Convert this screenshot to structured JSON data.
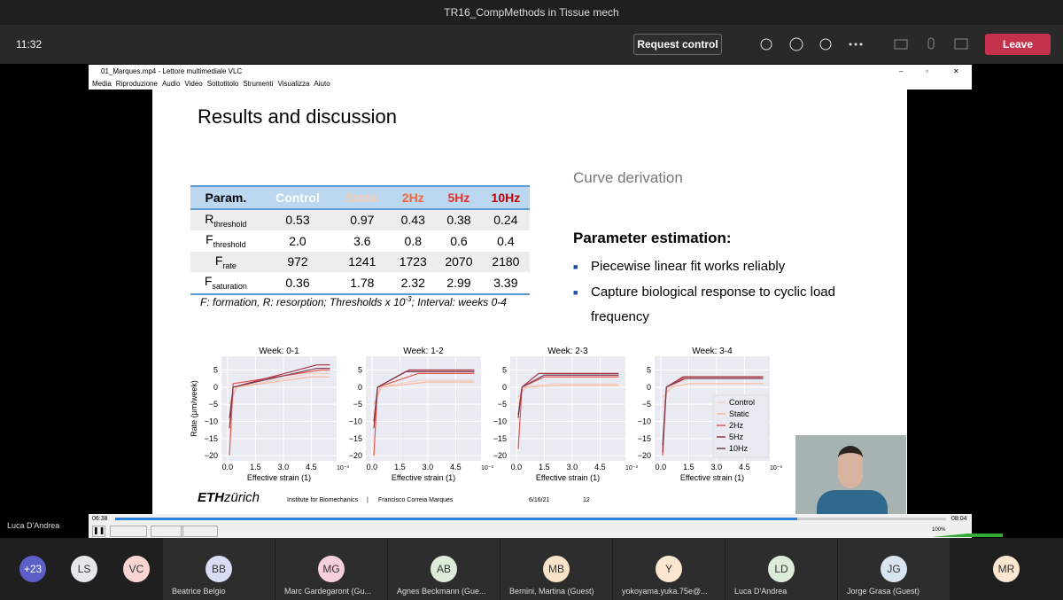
{
  "teams": {
    "meeting_title": "TR16_CompMethods in Tissue mech",
    "time": "11:32",
    "request_control": "Request control",
    "leave": "Leave",
    "presenter": "Luca D'Andrea"
  },
  "vlc": {
    "window_title": "01_Marques.mp4 - Lettore multimediale VLC",
    "menu": [
      "Media",
      "Riproduzione",
      "Audio",
      "Video",
      "Sottotitolo",
      "Strumenti",
      "Visualizza",
      "Aiuto"
    ],
    "elapsed": "06:38",
    "total": "08:04",
    "volume": "100%"
  },
  "slide": {
    "title": "Results and discussion",
    "table": {
      "header": [
        "Param.",
        "Control",
        "Static",
        "2Hz",
        "5Hz",
        "10Hz"
      ],
      "rows": [
        {
          "label": "R",
          "sub": "threshold",
          "cells": [
            "0.53",
            "0.97",
            "0.43",
            "0.38",
            "0.24"
          ]
        },
        {
          "label": "F",
          "sub": "threshold",
          "cells": [
            "2.0",
            "3.6",
            "0.8",
            "0.6",
            "0.4"
          ]
        },
        {
          "label": "F",
          "sub": "rate",
          "cells": [
            "972",
            "1241",
            "1723",
            "2070",
            "2180"
          ]
        },
        {
          "label": "F",
          "sub": "saturation",
          "cells": [
            "0.36",
            "1.78",
            "2.32",
            "2.99",
            "3.39"
          ]
        }
      ],
      "caption": [
        "F: formation, R: resorption; Thresholds x 10",
        "-3",
        "; Interval: weeks 0-4"
      ]
    },
    "curve_derivation": "Curve derivation",
    "param_heading": "Parameter estimation:",
    "bullets": [
      "Piecewise linear fit works reliably",
      "Capture biological response to cyclic load frequency"
    ],
    "footer": {
      "logo_bold": "ETH",
      "logo_rest": "zürich",
      "institute": "Institute for Biomechanics",
      "separator": "|",
      "author": "Francisco Correia Marques",
      "date": "6/16/21",
      "page": "12"
    },
    "plots": {
      "ylabel": "Rate (μm/week)",
      "xlabel": "Effective strain (1)",
      "x_exponent": "10⁻³",
      "xlim": [
        -0.33,
        5.86
      ],
      "ylim": [
        -21.5,
        9
      ],
      "xticks": [
        {
          "value": 0,
          "label": "0.0"
        },
        1.5,
        {
          "value": 3,
          "label": "3.0"
        },
        4.5
      ],
      "yticks": [
        5,
        0,
        {
          "value": -5,
          "label": "−5"
        },
        {
          "value": -10,
          "label": "−10"
        },
        {
          "value": -15,
          "label": "−15"
        },
        {
          "value": -20,
          "label": "−20"
        }
      ],
      "series_names": [
        "Control",
        "Static",
        "2Hz",
        "5Hz",
        "10Hz"
      ],
      "colors": [
        "#f2cfc8",
        "#f6b99c",
        "#e8584c",
        "#a3303c",
        "#7b3b52"
      ],
      "panels": [
        {
          "title": "Week: 0-1",
          "series": [
            {
              "x": [
                0.1,
                0.4,
                4.5,
                5.5
              ],
              "values": [
                -9,
                0,
                4,
                4
              ]
            },
            {
              "x": [
                0.1,
                0.5,
                4.5,
                5.5
              ],
              "values": [
                -5,
                0,
                3,
                3
              ]
            },
            {
              "x": [
                0.1,
                0.3,
                5.0,
                5.5
              ],
              "values": [
                -20,
                1,
                5,
                5
              ]
            },
            {
              "x": [
                0.1,
                0.3,
                4.8,
                5.5
              ],
              "values": [
                -12,
                0,
                6.5,
                6.5
              ]
            },
            {
              "x": [
                0.1,
                0.3,
                4.8,
                5.5
              ],
              "values": [
                -9,
                0,
                5.5,
                5.5
              ]
            }
          ]
        },
        {
          "title": "Week: 1-2",
          "series": [
            {
              "x": [
                0.1,
                0.4,
                2.5,
                5.5
              ],
              "values": [
                -8,
                0,
                2,
                2
              ]
            },
            {
              "x": [
                0.1,
                0.5,
                3,
                5.5
              ],
              "values": [
                -5,
                0,
                1.5,
                1.5
              ]
            },
            {
              "x": [
                0.1,
                0.3,
                2.5,
                5.5
              ],
              "values": [
                -20,
                0,
                4,
                4
              ]
            },
            {
              "x": [
                0.1,
                0.3,
                2,
                5.5
              ],
              "values": [
                -12,
                0,
                5,
                5
              ]
            },
            {
              "x": [
                0.1,
                0.3,
                1.8,
                5.5
              ],
              "values": [
                -10,
                0,
                4.5,
                4.5
              ]
            }
          ]
        },
        {
          "title": "Week: 2-3",
          "series": [
            {
              "x": [
                0.1,
                0.4,
                2,
                5.5
              ],
              "values": [
                -5,
                0,
                1,
                1
              ]
            },
            {
              "x": [
                0.1,
                0.5,
                2.5,
                5.5
              ],
              "values": [
                -3,
                0,
                0.5,
                0.5
              ]
            },
            {
              "x": [
                0.1,
                0.3,
                1.5,
                5.5
              ],
              "values": [
                -18,
                0,
                3,
                3
              ]
            },
            {
              "x": [
                0.1,
                0.3,
                1.2,
                5.5
              ],
              "values": [
                -8,
                0,
                4,
                4
              ]
            },
            {
              "x": [
                0.1,
                0.3,
                1.5,
                5.5
              ],
              "values": [
                -9,
                0,
                3.5,
                3.5
              ]
            }
          ]
        },
        {
          "title": "Week: 3-4",
          "series": [
            {
              "x": [
                0.1,
                0.4,
                1.5,
                5.5
              ],
              "values": [
                -6,
                0,
                2.5,
                2.5
              ]
            },
            {
              "x": [
                0.1,
                0.6,
                1.5,
                5.5
              ],
              "values": [
                -3,
                0,
                1,
                1
              ]
            },
            {
              "x": [
                0.1,
                0.3,
                1.3,
                5.5
              ],
              "values": [
                -20,
                0,
                3,
                3
              ]
            },
            {
              "x": [
                0.1,
                0.3,
                1.2,
                5.5
              ],
              "values": [
                -19,
                0,
                3,
                3
              ]
            },
            {
              "x": [
                0.1,
                0.3,
                1.3,
                5.5
              ],
              "values": [
                -17,
                0,
                2.5,
                2.5
              ]
            }
          ]
        }
      ]
    }
  },
  "participants": [
    {
      "initials": "+23"
    },
    {
      "initials": "LS"
    },
    {
      "initials": "VC"
    },
    {
      "initials": "BB",
      "name": "Beatrice Belgio"
    },
    {
      "initials": "MG",
      "name": "Marc Gardegaront (Gu..."
    },
    {
      "initials": "AB",
      "name": "Agnes Beckmann (Gue..."
    },
    {
      "initials": "MB",
      "name": "Bernini, Martina (Guest)"
    },
    {
      "initials": "Y",
      "name": "yokoyama.yuka.75e@..."
    },
    {
      "initials": "LD",
      "name": "Luca D'Andrea"
    },
    {
      "initials": "JG",
      "name": "Jorge Grasa (Guest)"
    },
    {
      "initials": "MR"
    }
  ]
}
